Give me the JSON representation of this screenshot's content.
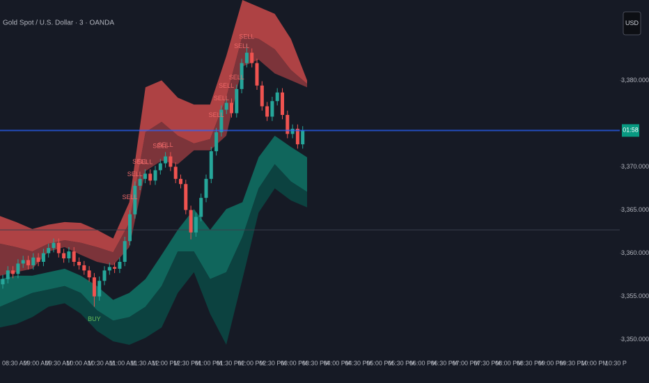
{
  "chart_data": {
    "type": "candlestick",
    "title": "Gold Spot / U.S. Dollar · 3 · OANDA",
    "currency": "USD",
    "price_label": "01:58",
    "categories": [
      "08:30 AM",
      "09:00 AM",
      "09:30 AM",
      "10:00 AM",
      "10:30 AM",
      "11:00 AM",
      "11:30 AM",
      "12:00 PM",
      "12:30 PM",
      "01:00 PM",
      "01:30 PM",
      "02:00 PM",
      "02:30 PM",
      "03:00 PM",
      "03:30 PM",
      "04:00 PM",
      "04:30 PM",
      "05:00 PM",
      "05:30 PM",
      "06:00 PM",
      "06:30 PM",
      "07:00 PM",
      "07:30 PM",
      "08:00 PM",
      "08:30 PM",
      "09:00 PM",
      "09:30 PM",
      "10:00 PM",
      "10:30 P"
    ],
    "ylim": [
      3348.2,
      3389.3
    ],
    "yticks": [
      {
        "value": 3350,
        "label": "3,350.000"
      },
      {
        "value": 3355,
        "label": "3,355.000"
      },
      {
        "value": 3360,
        "label": "3,360.000"
      },
      {
        "value": 3365,
        "label": "3,365.000"
      },
      {
        "value": 3370,
        "label": "3,370.000"
      },
      {
        "value": 3380,
        "label": "3,380.000"
      }
    ],
    "up_color": "#26a69a",
    "down_color": "#ef5350",
    "open": [
      3356.4,
      3357.0,
      3358.0,
      3357.6,
      3358.8,
      3359.2,
      3358.6,
      3359.5,
      3359.0,
      3360.0,
      3360.6,
      3361.2,
      3360.0,
      3359.4,
      3360.2,
      3359.0,
      3358.6,
      3358.0,
      3357.2,
      3355.0,
      3356.8,
      3358.0,
      3358.4,
      3358.2,
      3359.0,
      3361.4,
      3364.5,
      3367.8,
      3368.6,
      3369.2,
      3368.4,
      3369.6,
      3370.4,
      3371.2,
      3370.0,
      3368.6,
      3368.0,
      3365.0,
      3362.4,
      3364.2,
      3366.4,
      3368.6,
      3371.8,
      3374.0,
      3376.6,
      3377.4,
      3376.2,
      3379.0,
      3382.0,
      3383.2,
      3382.0,
      3379.4,
      3377.0,
      3375.8,
      3377.6,
      3378.6,
      3376.0,
      3373.8,
      3374.4,
      3372.6
    ],
    "high": [
      3357.5,
      3358.5,
      3358.5,
      3359.3,
      3359.7,
      3359.7,
      3360.0,
      3360.0,
      3360.5,
      3361.1,
      3361.7,
      3361.7,
      3360.5,
      3360.7,
      3360.7,
      3359.5,
      3359.1,
      3358.5,
      3357.7,
      3357.3,
      3358.5,
      3358.9,
      3358.9,
      3359.5,
      3361.9,
      3365.0,
      3368.3,
      3369.1,
      3369.7,
      3369.7,
      3370.1,
      3370.9,
      3371.7,
      3371.7,
      3370.5,
      3369.1,
      3368.5,
      3365.5,
      3364.7,
      3366.9,
      3369.1,
      3372.3,
      3374.5,
      3377.1,
      3377.9,
      3377.9,
      3379.5,
      3382.5,
      3384.2,
      3383.7,
      3382.5,
      3379.9,
      3377.5,
      3378.1,
      3379.1,
      3379.1,
      3376.5,
      3374.9,
      3374.9,
      3374.7
    ],
    "low": [
      3355.9,
      3356.5,
      3357.1,
      3357.1,
      3358.3,
      3358.1,
      3358.1,
      3358.5,
      3358.5,
      3359.5,
      3360.1,
      3359.5,
      3358.9,
      3358.9,
      3358.5,
      3358.1,
      3357.5,
      3356.7,
      3353.8,
      3354.5,
      3356.3,
      3357.5,
      3357.7,
      3357.7,
      3358.5,
      3360.9,
      3364.0,
      3367.3,
      3368.1,
      3367.9,
      3367.9,
      3369.1,
      3369.9,
      3369.5,
      3368.1,
      3367.5,
      3364.5,
      3361.6,
      3361.9,
      3363.7,
      3365.9,
      3368.1,
      3371.3,
      3373.5,
      3376.1,
      3375.7,
      3375.7,
      3378.5,
      3381.5,
      3381.5,
      3378.9,
      3376.5,
      3375.3,
      3375.3,
      3377.1,
      3375.5,
      3373.3,
      3373.3,
      3372.1,
      3372.1
    ],
    "close": [
      3357.0,
      3358.0,
      3357.6,
      3358.8,
      3359.2,
      3358.6,
      3359.5,
      3359.0,
      3360.0,
      3360.6,
      3361.2,
      3360.0,
      3359.4,
      3360.2,
      3359.0,
      3358.6,
      3358.0,
      3357.2,
      3355.0,
      3356.8,
      3358.0,
      3358.4,
      3358.2,
      3359.0,
      3361.4,
      3364.5,
      3367.8,
      3368.6,
      3369.2,
      3368.4,
      3369.6,
      3370.4,
      3371.2,
      3370.0,
      3368.6,
      3368.0,
      3365.0,
      3362.4,
      3364.2,
      3366.4,
      3368.6,
      3371.8,
      3374.0,
      3376.6,
      3377.4,
      3376.2,
      3379.0,
      3382.0,
      3383.2,
      3382.0,
      3379.4,
      3377.0,
      3375.8,
      3377.6,
      3378.6,
      3376.0,
      3373.8,
      3374.4,
      3372.6,
      3374.2
    ],
    "band_lines": {
      "upper_outer": [
        3364.3,
        3363.6,
        3362.8,
        3363.3,
        3363.6,
        3363.5,
        3362.7,
        3361.7,
        3365.9,
        3379.2,
        3380.0,
        3378.0,
        3377.2,
        3377.2,
        3382.8,
        3389.3,
        3388.5,
        3387.7,
        3384.8,
        3380.0
      ],
      "upper_mid": [
        3361.1,
        3360.7,
        3360.2,
        3361.1,
        3361.5,
        3361.2,
        3360.7,
        3360.1,
        3363.5,
        3374.0,
        3375.2,
        3373.6,
        3372.7,
        3373.2,
        3378.0,
        3385.2,
        3384.8,
        3383.6,
        3381.2,
        3379.6
      ],
      "upper_inner": [
        3357.4,
        3357.8,
        3358.2,
        3360.2,
        3360.7,
        3359.8,
        3359.0,
        3358.6,
        3360.7,
        3369.5,
        3370.7,
        3370.3,
        3371.9,
        3371.9,
        3373.6,
        3381.6,
        3382.4,
        3380.8,
        3380.0,
        3379.2
      ],
      "lower_inner": [
        3357.0,
        3357.4,
        3357.4,
        3357.8,
        3358.2,
        3357.4,
        3356.2,
        3354.6,
        3355.4,
        3357.0,
        3359.8,
        3362.7,
        3365.1,
        3362.7,
        3365.1,
        3365.9,
        3371.1,
        3373.6,
        3372.3,
        3371.1
      ],
      "lower_mid": [
        3353.8,
        3354.6,
        3355.4,
        3355.8,
        3356.2,
        3355.4,
        3353.4,
        3352.2,
        3352.6,
        3353.8,
        3356.2,
        3360.2,
        3360.2,
        3357.0,
        3357.8,
        3361.9,
        3367.5,
        3370.3,
        3368.3,
        3367.1
      ],
      "lower_outer": [
        3351.4,
        3351.8,
        3352.6,
        3353.8,
        3354.2,
        3353.0,
        3351.0,
        3349.8,
        3349.4,
        3350.2,
        3351.4,
        3355.4,
        3357.8,
        3353.0,
        3349.4,
        3357.0,
        3364.7,
        3367.5,
        3366.1,
        3365.3
      ]
    },
    "band_colors": [
      "#c94a4a",
      "#8e3a3e",
      "#0f7466",
      "#0b4a45"
    ],
    "reference_line": 3362.7,
    "signals": [
      {
        "text": "BUY",
        "candle": 18,
        "color": "#6bbf59"
      },
      {
        "text": "SELL",
        "candle": 25,
        "color": "#f06a6a"
      },
      {
        "text": "SELL",
        "candle": 26,
        "color": "#f06a6a"
      },
      {
        "text": "SELL",
        "candle": 27,
        "color": "#f06a6a"
      },
      {
        "text": "SELL",
        "candle": 28,
        "color": "#f06a6a"
      },
      {
        "text": "SELL",
        "candle": 31,
        "color": "#f06a6a"
      },
      {
        "text": "SELL",
        "candle": 32,
        "color": "#f06a6a"
      },
      {
        "text": "SELL",
        "candle": 42,
        "color": "#f06a6a"
      },
      {
        "text": "SELL",
        "candle": 43,
        "color": "#f06a6a"
      },
      {
        "text": "SELL",
        "candle": 44,
        "color": "#f06a6a"
      },
      {
        "text": "SELL",
        "candle": 46,
        "color": "#f06a6a"
      },
      {
        "text": "SELL",
        "candle": 47,
        "color": "#f06a6a"
      },
      {
        "text": "SELL",
        "candle": 48,
        "color": "#f06a6a"
      }
    ]
  }
}
